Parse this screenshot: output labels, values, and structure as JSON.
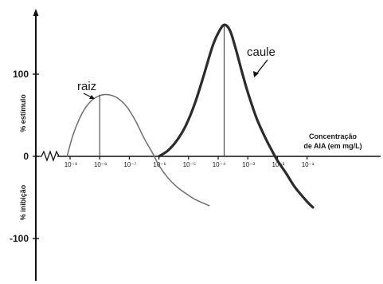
{
  "chart_data": {
    "type": "line",
    "title": "",
    "x_scale": "log10",
    "xlabel_line1": "Concentração",
    "xlabel_line2": "de AIA (em mg/L)",
    "ylabel_positive": "% estímulo",
    "ylabel_negative": "% inibição",
    "x_ticks": [
      {
        "label": "10⁻⁹",
        "value": -9
      },
      {
        "label": "10⁻⁸",
        "value": -8
      },
      {
        "label": "10⁻⁷",
        "value": -7
      },
      {
        "label": "10⁻⁶",
        "value": -6
      },
      {
        "label": "10⁻⁵",
        "value": -5
      },
      {
        "label": "10⁻⁴",
        "value": -4
      },
      {
        "label": "10⁻³",
        "value": -3
      },
      {
        "label": "10⁻²",
        "value": -2
      },
      {
        "label": "10⁻¹",
        "value": -1
      }
    ],
    "y_ticks": [
      {
        "label": "100",
        "value": 100
      },
      {
        "label": "0",
        "value": 0
      },
      {
        "label": "-100",
        "value": -100
      }
    ],
    "ylim": [
      -150,
      170
    ],
    "xlim": [
      -10.6,
      -0.3
    ],
    "series": [
      {
        "name": "raiz",
        "x": [
          -9.1,
          -8.9,
          -8.6,
          -8.3,
          -8.0,
          -7.7,
          -7.4,
          -7.1,
          -6.8,
          -6.5,
          -6.2,
          -6.0,
          -5.7,
          -5.4,
          -5.1,
          -4.8,
          -4.5,
          -4.3
        ],
        "y": [
          0,
          26,
          52,
          67,
          74,
          75,
          71,
          61,
          44,
          22,
          3,
          -11,
          -26,
          -37,
          -45,
          -52,
          -57,
          -60
        ],
        "peak_x": -8.0,
        "peak_y": 75
      },
      {
        "name": "caule",
        "x": [
          -6.0,
          -5.7,
          -5.4,
          -5.1,
          -4.8,
          -4.5,
          -4.2,
          -4.0,
          -3.8,
          -3.6,
          -3.4,
          -3.2,
          -3.0,
          -2.7,
          -2.4,
          -2.2,
          -2.0,
          -1.7,
          -1.4,
          -1.0,
          -0.8
        ],
        "y": [
          0,
          7,
          19,
          37,
          63,
          97,
          133,
          150,
          160,
          153,
          130,
          103,
          78,
          46,
          22,
          8,
          -5,
          -21,
          -38,
          -55,
          -62
        ],
        "peak_x": -3.8,
        "peak_y": 160
      }
    ],
    "grid": false,
    "legend": "none"
  }
}
